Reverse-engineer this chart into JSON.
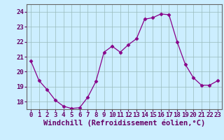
{
  "x": [
    0,
    1,
    2,
    3,
    4,
    5,
    6,
    7,
    8,
    9,
    10,
    11,
    12,
    13,
    14,
    15,
    16,
    17,
    18,
    19,
    20,
    21,
    22,
    23
  ],
  "y": [
    20.7,
    19.4,
    18.8,
    18.1,
    17.7,
    17.55,
    17.6,
    18.3,
    19.35,
    21.3,
    21.7,
    21.3,
    21.8,
    22.2,
    23.5,
    23.6,
    23.85,
    23.8,
    22.0,
    20.5,
    19.6,
    19.1,
    19.1,
    19.4
  ],
  "line_color": "#880088",
  "marker": "D",
  "marker_size": 2.5,
  "bg_color": "#cceeff",
  "grid_color": "#99bbbb",
  "xlabel": "Windchill (Refroidissement éolien,°C)",
  "xlabel_fontsize": 7.5,
  "tick_fontsize": 6.5,
  "ylim": [
    17.5,
    24.5
  ],
  "yticks": [
    18,
    19,
    20,
    21,
    22,
    23,
    24
  ],
  "xlim": [
    -0.5,
    23.5
  ],
  "xticks": [
    0,
    1,
    2,
    3,
    4,
    5,
    6,
    7,
    8,
    9,
    10,
    11,
    12,
    13,
    14,
    15,
    16,
    17,
    18,
    19,
    20,
    21,
    22,
    23
  ]
}
